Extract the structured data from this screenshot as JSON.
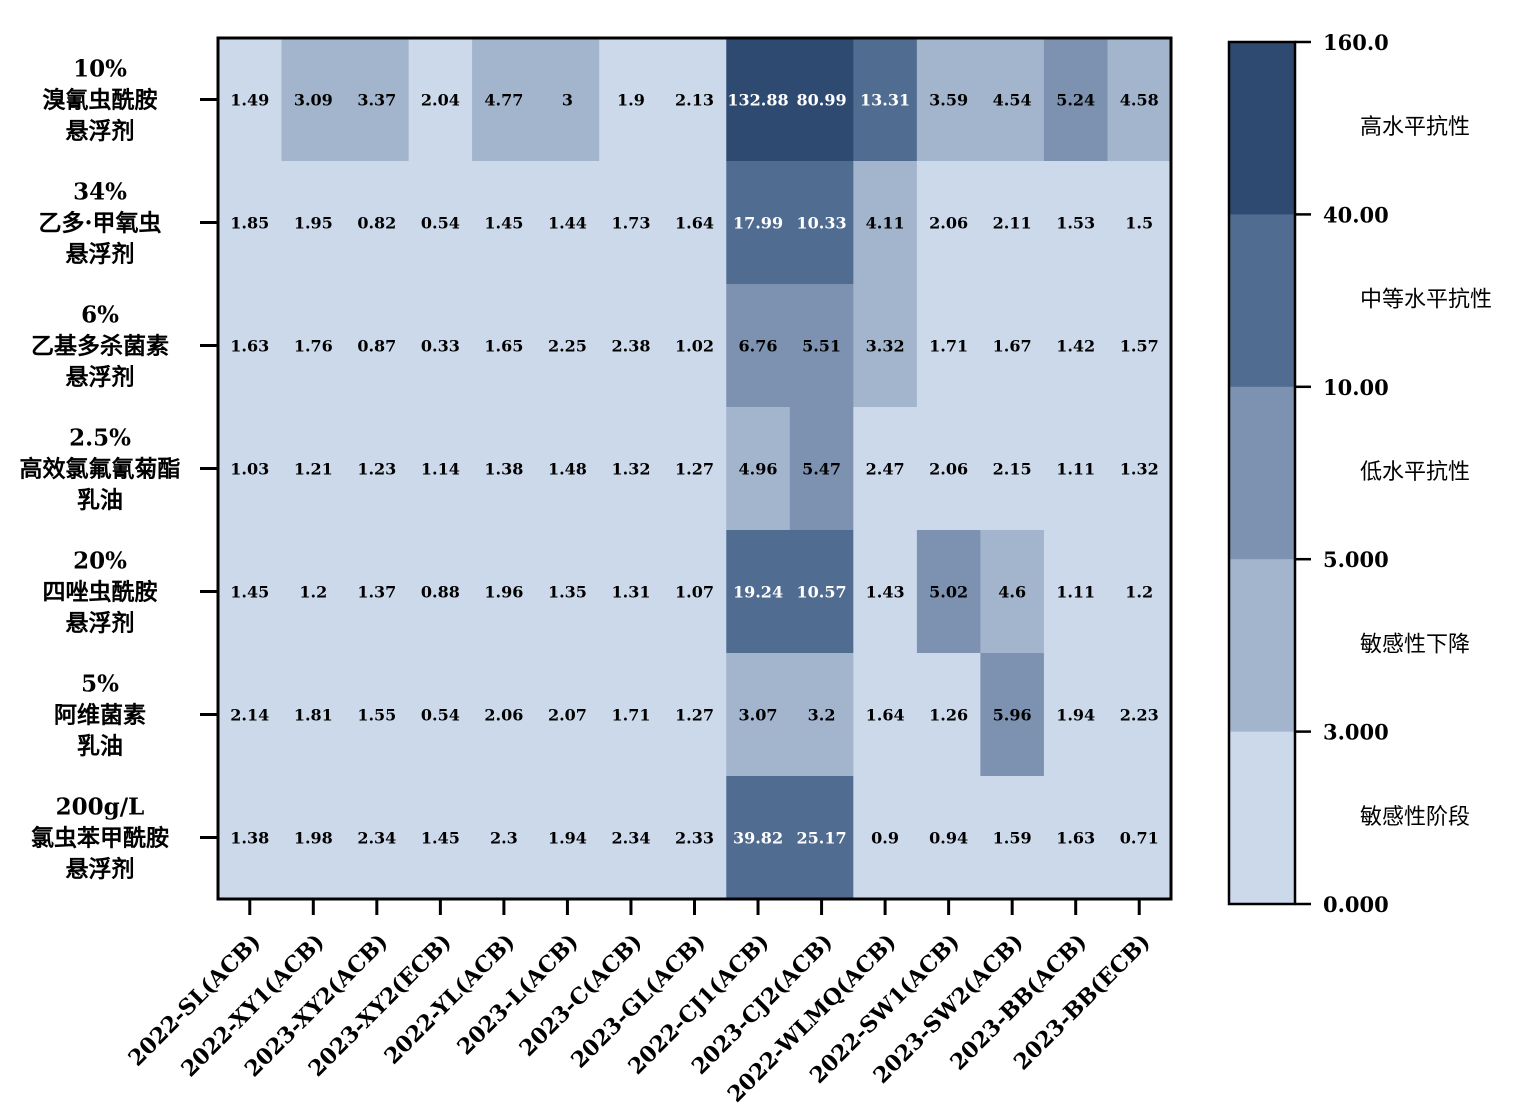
{
  "chart_data": {
    "type": "heatmap",
    "rows": [
      [
        "10%",
        "溴氰虫酰胺",
        "悬浮剂"
      ],
      [
        "34%",
        "乙多·甲氧虫",
        "悬浮剂"
      ],
      [
        "6%",
        "乙基多杀菌素",
        "悬浮剂"
      ],
      [
        "2.5%",
        "高效氯氟氰菊酯",
        "乳油"
      ],
      [
        "20%",
        "四唑虫酰胺",
        "悬浮剂"
      ],
      [
        "5%",
        "阿维菌素",
        "乳油"
      ],
      [
        "200g/L",
        "氯虫苯甲酰胺",
        "悬浮剂"
      ]
    ],
    "columns": [
      "2022-SL(ACB)",
      "2022-XY1(ACB)",
      "2023-XY2(ACB)",
      "2023-XY2(ECB)",
      "2022-YL(ACB)",
      "2023-L(ACB)",
      "2023-C(ACB)",
      "2023-GL(ACB)",
      "2022-CJ1(ACB)",
      "2023-CJ2(ACB)",
      "2022-WLMQ(ACB)",
      "2022-SW1(ACB)",
      "2023-SW2(ACB)",
      "2023-BB(ACB)",
      "2023-BB(ECB)"
    ],
    "values": [
      [
        "1.49",
        "3.09",
        "3.37",
        "2.04",
        "4.77",
        "3",
        "1.9",
        "2.13",
        "132.88",
        "80.99",
        "13.31",
        "3.59",
        "4.54",
        "5.24",
        "4.58"
      ],
      [
        "1.85",
        "1.95",
        "0.82",
        "0.54",
        "1.45",
        "1.44",
        "1.73",
        "1.64",
        "17.99",
        "10.33",
        "4.11",
        "2.06",
        "2.11",
        "1.53",
        "1.5"
      ],
      [
        "1.63",
        "1.76",
        "0.87",
        "0.33",
        "1.65",
        "2.25",
        "2.38",
        "1.02",
        "6.76",
        "5.51",
        "3.32",
        "1.71",
        "1.67",
        "1.42",
        "1.57"
      ],
      [
        "1.03",
        "1.21",
        "1.23",
        "1.14",
        "1.38",
        "1.48",
        "1.32",
        "1.27",
        "4.96",
        "5.47",
        "2.47",
        "2.06",
        "2.15",
        "1.11",
        "1.32"
      ],
      [
        "1.45",
        "1.2",
        "1.37",
        "0.88",
        "1.96",
        "1.35",
        "1.31",
        "1.07",
        "19.24",
        "10.57",
        "1.43",
        "5.02",
        "4.6",
        "1.11",
        "1.2"
      ],
      [
        "2.14",
        "1.81",
        "1.55",
        "0.54",
        "2.06",
        "2.07",
        "1.71",
        "1.27",
        "3.07",
        "3.2",
        "1.64",
        "1.26",
        "5.96",
        "1.94",
        "2.23"
      ],
      [
        "1.38",
        "1.98",
        "2.34",
        "1.45",
        "2.3",
        "1.94",
        "2.34",
        "2.33",
        "39.82",
        "25.17",
        "0.9",
        "0.94",
        "1.59",
        "1.63",
        "0.71"
      ]
    ],
    "legend": {
      "ticks": [
        "160.0",
        "40.00",
        "10.00",
        "5.000",
        "3.000",
        "0.000"
      ],
      "bands": [
        {
          "label": "高水平抗性",
          "min": 40,
          "max": 160,
          "color": "#2e4a71"
        },
        {
          "label": "中等水平抗性",
          "min": 10,
          "max": 40,
          "color": "#516c91"
        },
        {
          "label": "低水平抗性",
          "min": 5,
          "max": 10,
          "color": "#7d92b0"
        },
        {
          "label": "敏感性下降",
          "min": 3,
          "max": 5,
          "color": "#a3b4cd"
        },
        {
          "label": "敏感性阶段",
          "min": 0,
          "max": 3,
          "color": "#ccd9ea"
        }
      ],
      "placement": "right"
    },
    "grid": false
  }
}
